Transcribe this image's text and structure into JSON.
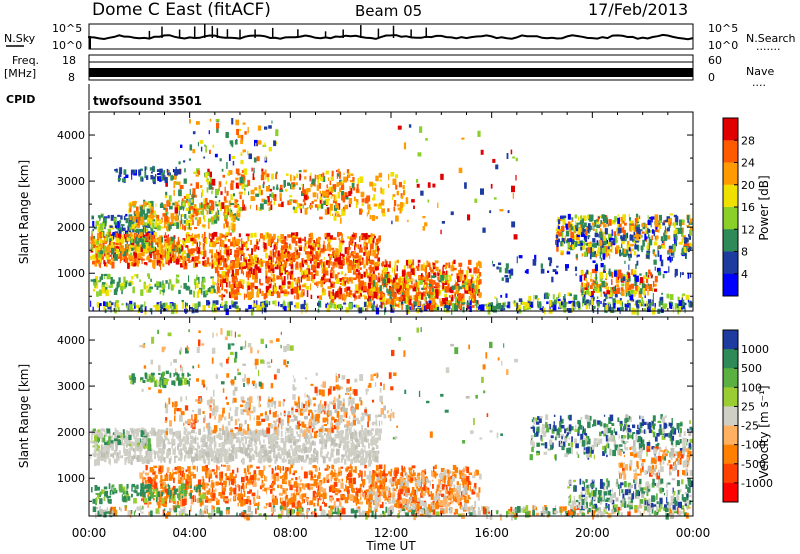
{
  "header": {
    "station": "Dome C East (fitACF)",
    "beam": "Beam 05",
    "date": "17/Feb/2013"
  },
  "noise_panel": {
    "left_label": "N.Sky",
    "right_label": "N.Search",
    "left_ticks": [
      "10^5",
      "10^0"
    ],
    "right_ticks": [
      "10^5",
      "10^0"
    ],
    "right_dots": "......."
  },
  "freq_panel": {
    "left_label_top": "Freq.",
    "left_label_bottom": "[MHz]",
    "left_ticks": [
      "18",
      "8"
    ],
    "right_label": "Nave",
    "right_ticks": [
      "60",
      "0"
    ],
    "right_dots": "...."
  },
  "cpid_panel": {
    "label": "CPID",
    "value": "twofsound 3501"
  },
  "x_axis": {
    "label": "Time UT",
    "ticks": [
      "00:00",
      "04:00",
      "08:00",
      "12:00",
      "16:00",
      "20:00",
      "00:00"
    ]
  },
  "power_panel": {
    "ylabel": "Slant Range [km]",
    "yticks": [
      "4000",
      "3000",
      "2000",
      "1000"
    ],
    "colorbar_label": "Power [dB]",
    "colorbar_ticks": [
      "28",
      "24",
      "20",
      "16",
      "12",
      "8",
      "4"
    ],
    "colors": [
      "#e00000",
      "#ff5a00",
      "#ff9a00",
      "#f0e000",
      "#8ad028",
      "#2e8b57",
      "#1e3ca0",
      "#0000ff"
    ]
  },
  "velocity_panel": {
    "ylabel": "Slant Range [km]",
    "yticks": [
      "4000",
      "3000",
      "2000",
      "1000"
    ],
    "colorbar_label": "Velocity [m s⁻¹]",
    "colorbar_ticks": [
      "1000",
      "500",
      "100",
      "25",
      "-25",
      "-100",
      "-500",
      "-1000"
    ],
    "colors": [
      "#1e3ca0",
      "#2e8b57",
      "#5ab040",
      "#9acd32",
      "#cfcfc6",
      "#ffb060",
      "#ff8000",
      "#ff4000",
      "#ff0000"
    ]
  },
  "chart_data": [
    {
      "type": "line",
      "title": "N.Sky / N.Search",
      "x": [
        "00:00",
        "04:00",
        "08:00",
        "12:00",
        "16:00",
        "20:00",
        "00:00"
      ],
      "ylim": [
        "10^0",
        "10^5"
      ]
    },
    {
      "type": "area",
      "title": "Freq. [MHz] / Nave",
      "ylim_left": [
        8,
        18
      ],
      "ylim_right": [
        0,
        60
      ]
    },
    {
      "type": "heatmap",
      "title": "Power [dB]",
      "xlabel": "Time UT",
      "ylabel": "Slant Range [km]",
      "xlim": [
        "00:00",
        "00:00"
      ],
      "ylim": [
        180,
        4500
      ],
      "color_scale": [
        4,
        8,
        12,
        16,
        20,
        24,
        28
      ]
    },
    {
      "type": "heatmap",
      "title": "Velocity [m s-1]",
      "xlabel": "Time UT",
      "ylabel": "Slant Range [km]",
      "xlim": [
        "00:00",
        "00:00"
      ],
      "ylim": [
        180,
        4500
      ],
      "color_scale": [
        -1000,
        -500,
        -100,
        -25,
        25,
        100,
        500,
        1000
      ]
    }
  ]
}
